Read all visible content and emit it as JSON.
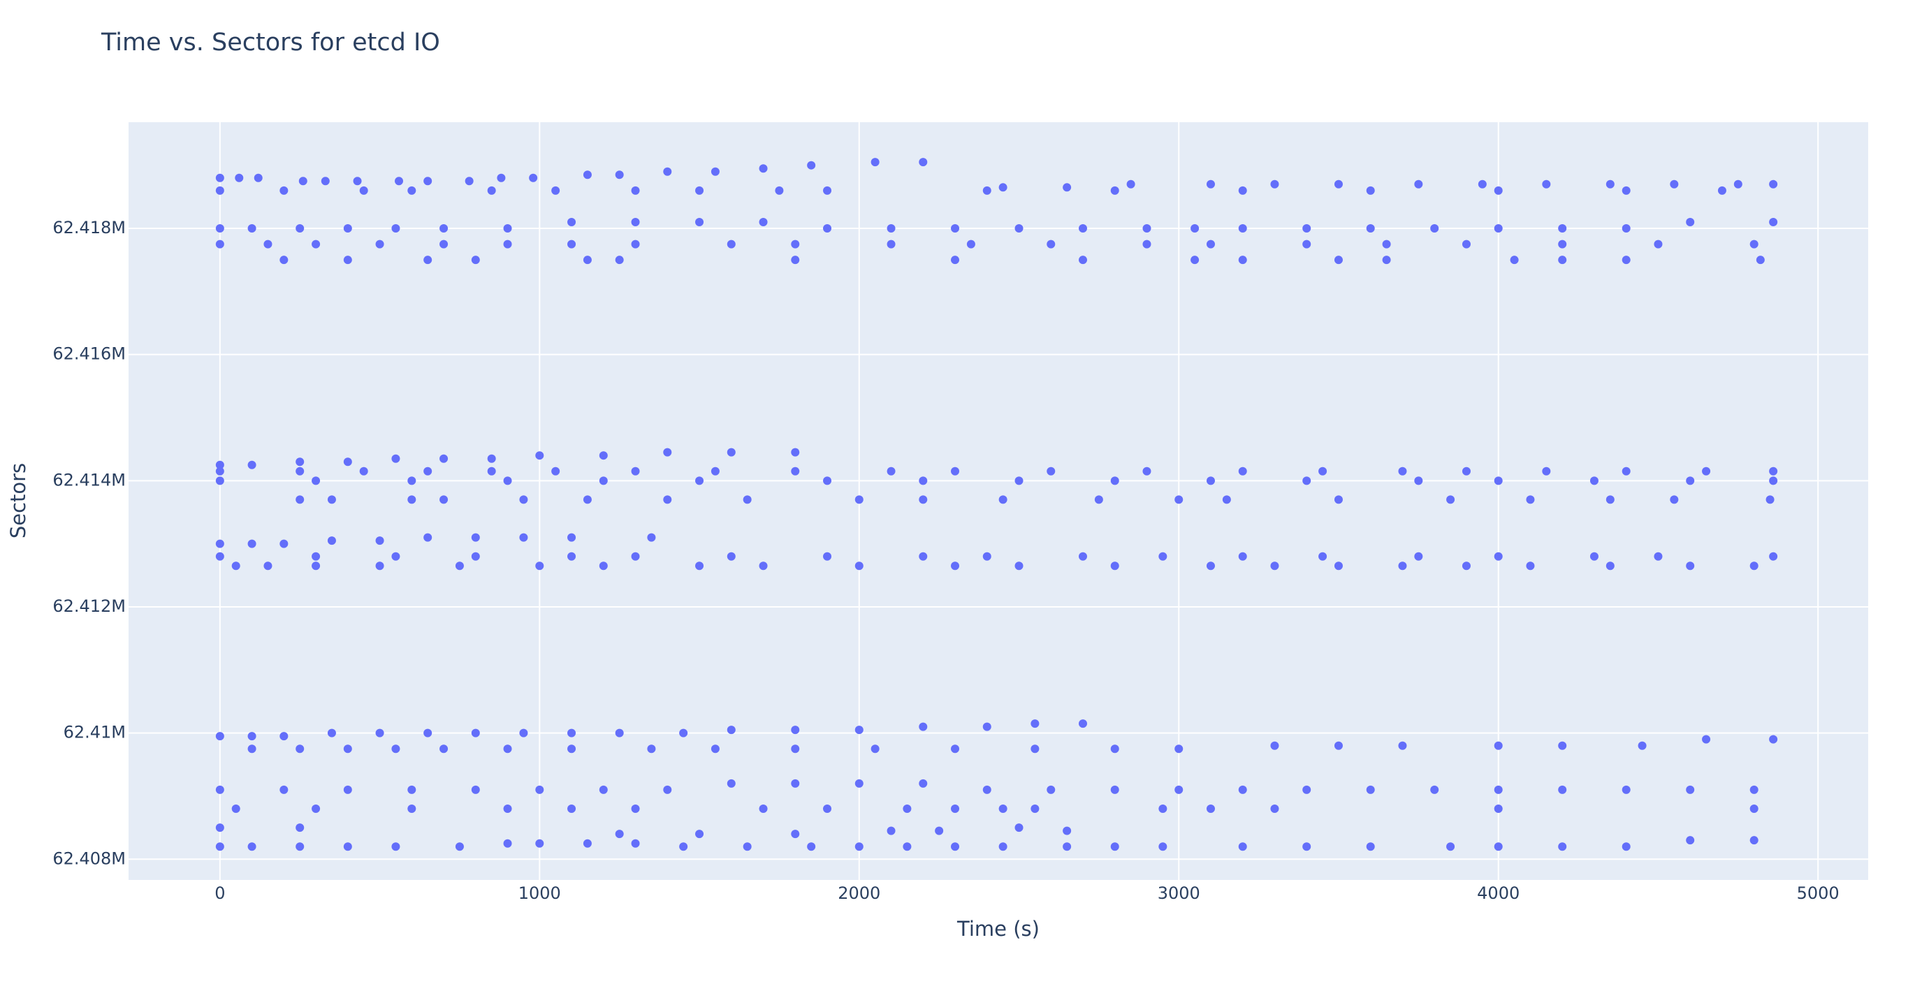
{
  "chart_data": {
    "type": "scatter",
    "title": "Time vs. Sectors for etcd IO",
    "xlabel": "Time (s)",
    "ylabel": "Sectors",
    "color": "#636efa",
    "grid": true,
    "xlim": [
      -286,
      5157
    ],
    "ylim": [
      62407671,
      62419683
    ],
    "xticks": [
      0,
      1000,
      2000,
      3000,
      4000,
      5000
    ],
    "yticks": [
      {
        "value": 62408000,
        "label": "62.408M"
      },
      {
        "value": 62410000,
        "label": "62.41M"
      },
      {
        "value": 62412000,
        "label": "62.412M"
      },
      {
        "value": 62414000,
        "label": "62.414M"
      },
      {
        "value": 62416000,
        "label": "62.416M"
      },
      {
        "value": 62418000,
        "label": "62.418M"
      }
    ],
    "x": [
      0,
      60,
      120,
      260,
      330,
      430,
      560,
      650,
      780,
      880,
      980,
      1150,
      1250,
      1400,
      1550,
      1700,
      1850,
      2050,
      2200,
      2450,
      2650,
      2850,
      3100,
      3300,
      3500,
      3750,
      3950,
      4150,
      4350,
      4550,
      4750,
      4860,
      0,
      200,
      450,
      600,
      850,
      1050,
      1300,
      1500,
      1750,
      1900,
      2400,
      2800,
      3200,
      3600,
      4000,
      4400,
      4700,
      0,
      100,
      250,
      400,
      550,
      700,
      900,
      1100,
      1300,
      1500,
      1700,
      1900,
      2100,
      2300,
      2500,
      2700,
      2900,
      3050,
      3200,
      3400,
      3600,
      3800,
      4000,
      4200,
      4400,
      4600,
      4860,
      0,
      150,
      300,
      500,
      700,
      900,
      1100,
      1300,
      1600,
      1800,
      2100,
      2350,
      2600,
      2900,
      3100,
      3400,
      3650,
      3900,
      4200,
      4500,
      4800,
      200,
      400,
      650,
      800,
      1150,
      1250,
      1800,
      2300,
      2700,
      3050,
      3200,
      3500,
      3650,
      4050,
      4200,
      4400,
      4820,
      0,
      100,
      250,
      400,
      550,
      700,
      850,
      1000,
      1200,
      1400,
      1600,
      1800,
      0,
      250,
      450,
      650,
      850,
      1050,
      1300,
      1550,
      1800,
      2100,
      2300,
      2600,
      2900,
      3200,
      3450,
      3700,
      3900,
      4150,
      4400,
      4650,
      4860,
      0,
      300,
      600,
      900,
      1200,
      1500,
      1900,
      2200,
      2500,
      2800,
      3100,
      3400,
      3750,
      4000,
      4300,
      4600,
      4860,
      250,
      350,
      600,
      700,
      950,
      1150,
      1400,
      1650,
      2000,
      2200,
      2450,
      2750,
      3000,
      3150,
      3500,
      3850,
      4100,
      4350,
      4550,
      4850,
      0,
      100,
      200,
      350,
      500,
      650,
      800,
      950,
      1100,
      1350,
      0,
      300,
      550,
      800,
      1100,
      1300,
      1600,
      1900,
      2200,
      2400,
      2700,
      2950,
      3200,
      3450,
      3750,
      4000,
      4300,
      4500,
      4860,
      50,
      150,
      300,
      500,
      750,
      1000,
      1200,
      1500,
      1700,
      2000,
      2300,
      2500,
      2800,
      3100,
      3300,
      3500,
      3700,
      3900,
      4100,
      4350,
      4600,
      4800,
      0,
      100,
      200,
      350,
      500,
      650,
      800,
      950,
      1100,
      1250,
      1450,
      1600,
      1800,
      2000,
      2200,
      2400,
      2550,
      2700,
      100,
      250,
      400,
      550,
      700,
      900,
      1100,
      1350,
      1550,
      1800,
      2050,
      2300,
      2550,
      2800,
      3000,
      3300,
      3500,
      3700,
      4000,
      4200,
      4450,
      4650,
      4860,
      0,
      200,
      400,
      600,
      800,
      1000,
      1200,
      1400,
      1600,
      1800,
      2000,
      2200,
      2400,
      2600,
      2800,
      3000,
      3200,
      3400,
      3600,
      3800,
      4000,
      4200,
      4400,
      4600,
      4800,
      50,
      300,
      600,
      900,
      1100,
      1300,
      1700,
      1900,
      2150,
      2300,
      2450,
      2550,
      2950,
      3100,
      3300,
      4000,
      4800,
      0,
      250,
      1250,
      1500,
      1800,
      2100,
      2250,
      2500,
      2650,
      0,
      100,
      250,
      400,
      550,
      750,
      900,
      1000,
      1150,
      1300,
      1450,
      1650,
      1850,
      2000,
      2150,
      2300,
      2450,
      2650,
      2800,
      2950,
      3200,
      3400,
      3600,
      3850,
      4000,
      4200,
      4400,
      4600,
      4800
    ],
    "values": [
      62418800,
      62418800,
      62418800,
      62418750,
      62418750,
      62418750,
      62418750,
      62418750,
      62418750,
      62418800,
      62418800,
      62418850,
      62418850,
      62418900,
      62418900,
      62418950,
      62419000,
      62419050,
      62419050,
      62418650,
      62418650,
      62418700,
      62418700,
      62418700,
      62418700,
      62418700,
      62418700,
      62418700,
      62418700,
      62418700,
      62418700,
      62418700,
      62418600,
      62418600,
      62418600,
      62418600,
      62418600,
      62418600,
      62418600,
      62418600,
      62418600,
      62418600,
      62418600,
      62418600,
      62418600,
      62418600,
      62418600,
      62418600,
      62418600,
      62418000,
      62418000,
      62418000,
      62418000,
      62418000,
      62418000,
      62418000,
      62418100,
      62418100,
      62418100,
      62418100,
      62418000,
      62418000,
      62418000,
      62418000,
      62418000,
      62418000,
      62418000,
      62418000,
      62418000,
      62418000,
      62418000,
      62418000,
      62418000,
      62418000,
      62418100,
      62418100,
      62417750,
      62417750,
      62417750,
      62417750,
      62417750,
      62417750,
      62417750,
      62417750,
      62417750,
      62417750,
      62417750,
      62417750,
      62417750,
      62417750,
      62417750,
      62417750,
      62417750,
      62417750,
      62417750,
      62417750,
      62417750,
      62417500,
      62417500,
      62417500,
      62417500,
      62417500,
      62417500,
      62417500,
      62417500,
      62417500,
      62417500,
      62417500,
      62417500,
      62417500,
      62417500,
      62417500,
      62417500,
      62417500,
      62414250,
      62414250,
      62414300,
      62414300,
      62414350,
      62414350,
      62414350,
      62414400,
      62414400,
      62414450,
      62414450,
      62414450,
      62414150,
      62414150,
      62414150,
      62414150,
      62414150,
      62414150,
      62414150,
      62414150,
      62414150,
      62414150,
      62414150,
      62414150,
      62414150,
      62414150,
      62414150,
      62414150,
      62414150,
      62414150,
      62414150,
      62414150,
      62414150,
      62414000,
      62414000,
      62414000,
      62414000,
      62414000,
      62414000,
      62414000,
      62414000,
      62414000,
      62414000,
      62414000,
      62414000,
      62414000,
      62414000,
      62414000,
      62414000,
      62414000,
      62413700,
      62413700,
      62413700,
      62413700,
      62413700,
      62413700,
      62413700,
      62413700,
      62413700,
      62413700,
      62413700,
      62413700,
      62413700,
      62413700,
      62413700,
      62413700,
      62413700,
      62413700,
      62413700,
      62413700,
      62413000,
      62413000,
      62413000,
      62413050,
      62413050,
      62413100,
      62413100,
      62413100,
      62413100,
      62413100,
      62412800,
      62412800,
      62412800,
      62412800,
      62412800,
      62412800,
      62412800,
      62412800,
      62412800,
      62412800,
      62412800,
      62412800,
      62412800,
      62412800,
      62412800,
      62412800,
      62412800,
      62412800,
      62412800,
      62412650,
      62412650,
      62412650,
      62412650,
      62412650,
      62412650,
      62412650,
      62412650,
      62412650,
      62412650,
      62412650,
      62412650,
      62412650,
      62412650,
      62412650,
      62412650,
      62412650,
      62412650,
      62412650,
      62412650,
      62412650,
      62412650,
      62409950,
      62409950,
      62409950,
      62410000,
      62410000,
      62410000,
      62410000,
      62410000,
      62410000,
      62410000,
      62410000,
      62410050,
      62410050,
      62410050,
      62410100,
      62410100,
      62410150,
      62410150,
      62409750,
      62409750,
      62409750,
      62409750,
      62409750,
      62409750,
      62409750,
      62409750,
      62409750,
      62409750,
      62409750,
      62409750,
      62409750,
      62409750,
      62409750,
      62409800,
      62409800,
      62409800,
      62409800,
      62409800,
      62409800,
      62409900,
      62409900,
      62409100,
      62409100,
      62409100,
      62409100,
      62409100,
      62409100,
      62409100,
      62409100,
      62409200,
      62409200,
      62409200,
      62409200,
      62409100,
      62409100,
      62409100,
      62409100,
      62409100,
      62409100,
      62409100,
      62409100,
      62409100,
      62409100,
      62409100,
      62409100,
      62409100,
      62408800,
      62408800,
      62408800,
      62408800,
      62408800,
      62408800,
      62408800,
      62408800,
      62408800,
      62408800,
      62408800,
      62408800,
      62408800,
      62408800,
      62408800,
      62408800,
      62408800,
      62408500,
      62408500,
      62408400,
      62408400,
      62408400,
      62408450,
      62408450,
      62408500,
      62408450,
      62408200,
      62408200,
      62408200,
      62408200,
      62408200,
      62408200,
      62408250,
      62408250,
      62408250,
      62408250,
      62408200,
      62408200,
      62408200,
      62408200,
      62408200,
      62408200,
      62408200,
      62408200,
      62408200,
      62408200,
      62408200,
      62408200,
      62408200,
      62408200,
      62408200,
      62408200,
      62408200,
      62408300,
      62408300
    ]
  }
}
